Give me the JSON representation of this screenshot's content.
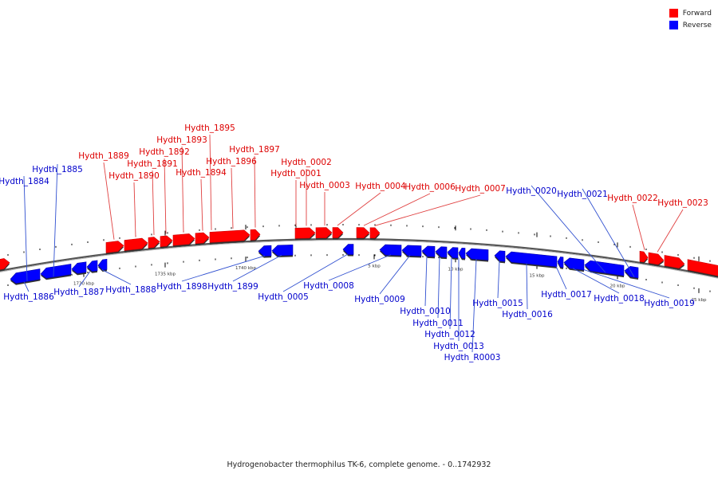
{
  "legend": {
    "forward": "Forward",
    "reverse": "Reverse",
    "forward_color": "#ff0000",
    "reverse_color": "#0000ff"
  },
  "caption": "Hydrogenobacter thermophilus TK-6, complete genome. - 0..1742932",
  "scale_labels": [
    "1730 kbp",
    "1735 kbp",
    "1740 kbp",
    "5 kbp",
    "10 kbp",
    "15 kbp",
    "20 kbp",
    "25 kbp"
  ],
  "genes": [
    {
      "name": "Hydth_1884",
      "strand": "reverse"
    },
    {
      "name": "Hydth_1885",
      "strand": "reverse"
    },
    {
      "name": "Hydth_1886",
      "strand": "reverse"
    },
    {
      "name": "Hydth_1887",
      "strand": "reverse"
    },
    {
      "name": "Hydth_1888",
      "strand": "reverse"
    },
    {
      "name": "Hydth_1889",
      "strand": "forward"
    },
    {
      "name": "Hydth_1890",
      "strand": "forward"
    },
    {
      "name": "Hydth_1891",
      "strand": "forward"
    },
    {
      "name": "Hydth_1892",
      "strand": "forward"
    },
    {
      "name": "Hydth_1893",
      "strand": "forward"
    },
    {
      "name": "Hydth_1894",
      "strand": "forward"
    },
    {
      "name": "Hydth_1895",
      "strand": "forward"
    },
    {
      "name": "Hydth_1896",
      "strand": "forward"
    },
    {
      "name": "Hydth_1897",
      "strand": "forward"
    },
    {
      "name": "Hydth_1898",
      "strand": "reverse"
    },
    {
      "name": "Hydth_1899",
      "strand": "reverse"
    },
    {
      "name": "Hydth_0001",
      "strand": "forward"
    },
    {
      "name": "Hydth_0002",
      "strand": "forward"
    },
    {
      "name": "Hydth_0003",
      "strand": "forward"
    },
    {
      "name": "Hydth_0004",
      "strand": "forward"
    },
    {
      "name": "Hydth_0005",
      "strand": "reverse"
    },
    {
      "name": "Hydth_0006",
      "strand": "forward"
    },
    {
      "name": "Hydth_0007",
      "strand": "forward"
    },
    {
      "name": "Hydth_0008",
      "strand": "reverse"
    },
    {
      "name": "Hydth_0009",
      "strand": "reverse"
    },
    {
      "name": "Hydth_0010",
      "strand": "reverse"
    },
    {
      "name": "Hydth_0011",
      "strand": "reverse"
    },
    {
      "name": "Hydth_0012",
      "strand": "reverse"
    },
    {
      "name": "Hydth_0013",
      "strand": "reverse"
    },
    {
      "name": "Hydth_R0003",
      "strand": "reverse"
    },
    {
      "name": "Hydth_0015",
      "strand": "reverse"
    },
    {
      "name": "Hydth_0016",
      "strand": "reverse"
    },
    {
      "name": "Hydth_0017",
      "strand": "reverse"
    },
    {
      "name": "Hydth_0018",
      "strand": "reverse"
    },
    {
      "name": "Hydth_0019",
      "strand": "reverse"
    },
    {
      "name": "Hydth_0020",
      "strand": "reverse"
    },
    {
      "name": "Hydth_0021",
      "strand": "reverse"
    },
    {
      "name": "Hydth_0022",
      "strand": "forward"
    },
    {
      "name": "Hydth_0023",
      "strand": "forward"
    }
  ]
}
